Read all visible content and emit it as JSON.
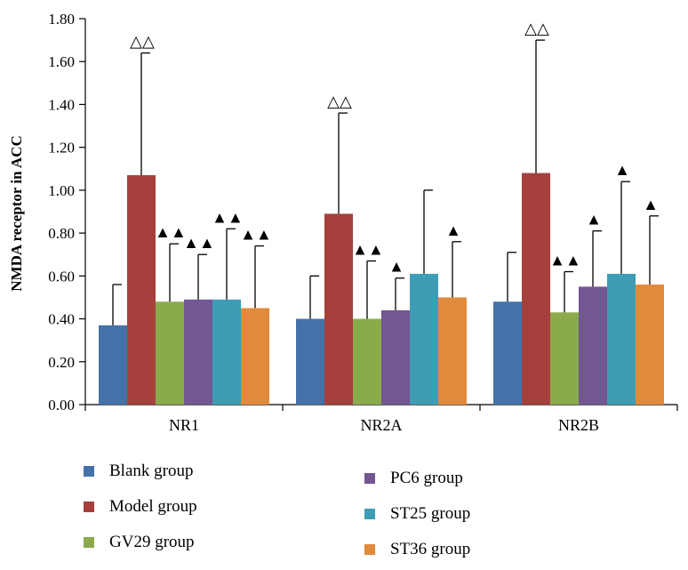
{
  "chart_data": {
    "type": "bar",
    "title": "",
    "xlabel": "",
    "ylabel": "NMDA receptor in ACC",
    "ylim": [
      0,
      1.8
    ],
    "ytick_step": 0.2,
    "yticks": [
      "0.00",
      "0.20",
      "0.40",
      "0.60",
      "0.80",
      "1.00",
      "1.20",
      "1.40",
      "1.60",
      "1.80"
    ],
    "categories": [
      "NR1",
      "NR2A",
      "NR2B"
    ],
    "series": [
      {
        "name": "Blank group",
        "color": "#4472a8",
        "values": [
          0.37,
          0.4,
          0.48
        ],
        "error_upper": [
          0.56,
          0.6,
          0.71
        ],
        "markers": [
          "",
          "",
          ""
        ]
      },
      {
        "name": "Model group",
        "color": "#a5403d",
        "values": [
          1.07,
          0.89,
          1.08
        ],
        "error_upper": [
          1.64,
          1.36,
          1.7
        ],
        "markers": [
          "△△",
          "△△",
          "△△"
        ]
      },
      {
        "name": "GV29 group",
        "color": "#8aaa4c",
        "values": [
          0.48,
          0.4,
          0.43
        ],
        "error_upper": [
          0.75,
          0.67,
          0.62
        ],
        "markers": [
          "▲▲",
          "▲▲",
          "▲▲"
        ]
      },
      {
        "name": "PC6 group",
        "color": "#725792",
        "values": [
          0.49,
          0.44,
          0.55
        ],
        "error_upper": [
          0.7,
          0.59,
          0.81
        ],
        "markers": [
          "▲▲",
          "▲",
          "▲"
        ]
      },
      {
        "name": "ST25 group",
        "color": "#3d9db4",
        "values": [
          0.49,
          0.61,
          0.61
        ],
        "error_upper": [
          0.82,
          1.0,
          1.04
        ],
        "markers": [
          "▲▲",
          "",
          "▲"
        ]
      },
      {
        "name": "ST36 group",
        "color": "#e08a3c",
        "values": [
          0.45,
          0.5,
          0.56
        ],
        "error_upper": [
          0.74,
          0.76,
          0.88
        ],
        "markers": [
          "▲▲",
          "▲",
          "▲"
        ]
      }
    ],
    "legend_position": "bottom"
  }
}
